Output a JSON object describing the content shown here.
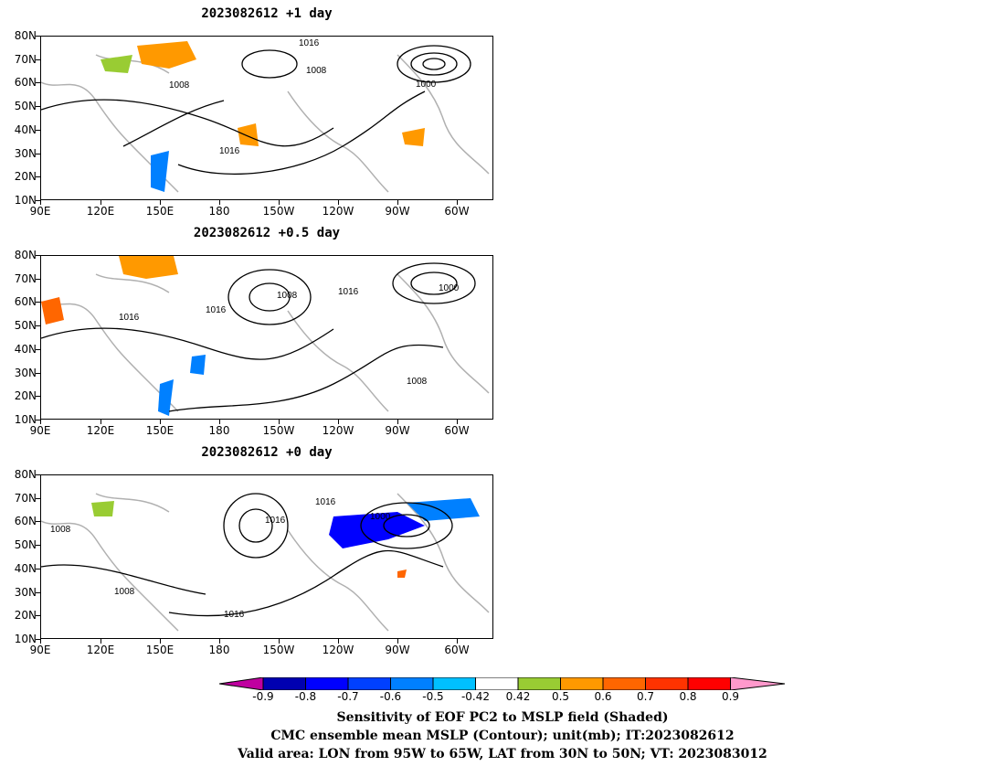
{
  "panels": [
    {
      "title": "2023082612 +1 day"
    },
    {
      "title": "2023082612 +0.5 day"
    },
    {
      "title": "2023082612 +0 day"
    }
  ],
  "lat_labels": [
    "80N",
    "70N",
    "60N",
    "50N",
    "40N",
    "30N",
    "20N",
    "10N"
  ],
  "lon_labels": [
    "90E",
    "120E",
    "150E",
    "180",
    "150W",
    "120W",
    "90W",
    "60W"
  ],
  "contour_labels": [
    "1016",
    "1008",
    "1000"
  ],
  "colorbar": {
    "labels": [
      "-0.9",
      "-0.8",
      "-0.7",
      "-0.6",
      "-0.5",
      "-0.42",
      "0.42",
      "0.5",
      "0.6",
      "0.7",
      "0.8",
      "0.9"
    ],
    "colors": [
      "#c000a0",
      "#0000b0",
      "#0000ff",
      "#0040ff",
      "#0080ff",
      "#00c0ff",
      "#ffffff",
      "#99cc33",
      "#ff9900",
      "#ff6600",
      "#ff3300",
      "#ff0000",
      "#ff99cc"
    ]
  },
  "caption": {
    "line1": "Sensitivity of EOF PC2 to MSLP field (Shaded)",
    "line2": "CMC ensemble mean MSLP (Contour); unit(mb); IT:2023082612",
    "line3": "Valid area: LON from 95W to 65W, LAT from 30N to 50N; VT: 2023083012"
  }
}
